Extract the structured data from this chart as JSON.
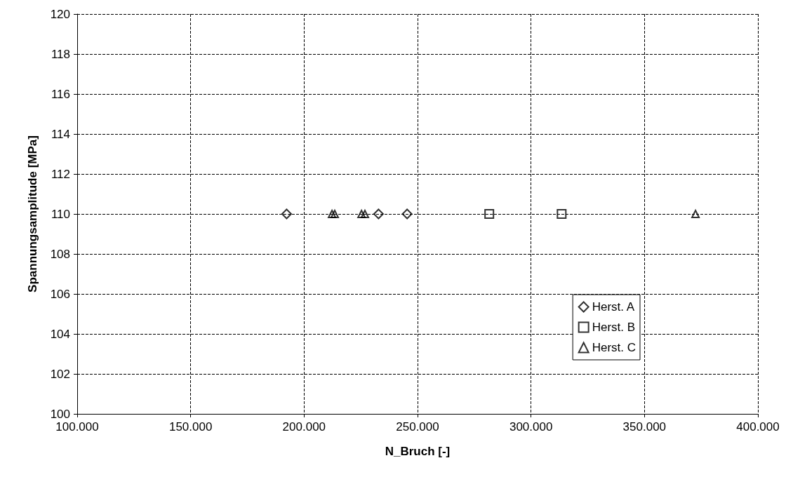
{
  "chart_data": {
    "type": "scatter",
    "xlabel": "N_Bruch [-]",
    "ylabel": "Spannungsamplitude [MPa]",
    "xlim": [
      100000,
      400000
    ],
    "xticks": [
      {
        "value": 100000,
        "label": "100.000"
      },
      {
        "value": 150000,
        "label": "150.000"
      },
      {
        "value": 200000,
        "label": "200.000"
      },
      {
        "value": 250000,
        "label": "250.000"
      },
      {
        "value": 300000,
        "label": "300.000"
      },
      {
        "value": 350000,
        "label": "350.000"
      },
      {
        "value": 400000,
        "label": "400.000"
      }
    ],
    "ylim": [
      100,
      120
    ],
    "yticks": [
      100,
      102,
      104,
      106,
      108,
      110,
      112,
      114,
      116,
      118,
      120
    ],
    "grid": true,
    "legend": "bottom right",
    "series": [
      {
        "name": "Herst. A",
        "color": "#000000",
        "marker": "diamond",
        "x": [
          192300,
          232800,
          245400
        ],
        "values": [
          110,
          110,
          110
        ]
      },
      {
        "name": "Herst. B",
        "color": "#000000",
        "marker": "square",
        "x": [
          281600,
          313500
        ],
        "values": [
          110,
          110
        ]
      },
      {
        "name": "Herst. C",
        "color": "#000000",
        "marker": "triangle",
        "x": [
          212300,
          213500,
          225300,
          226800,
          372500
        ],
        "values": [
          110,
          110,
          110,
          110,
          110
        ]
      }
    ]
  }
}
